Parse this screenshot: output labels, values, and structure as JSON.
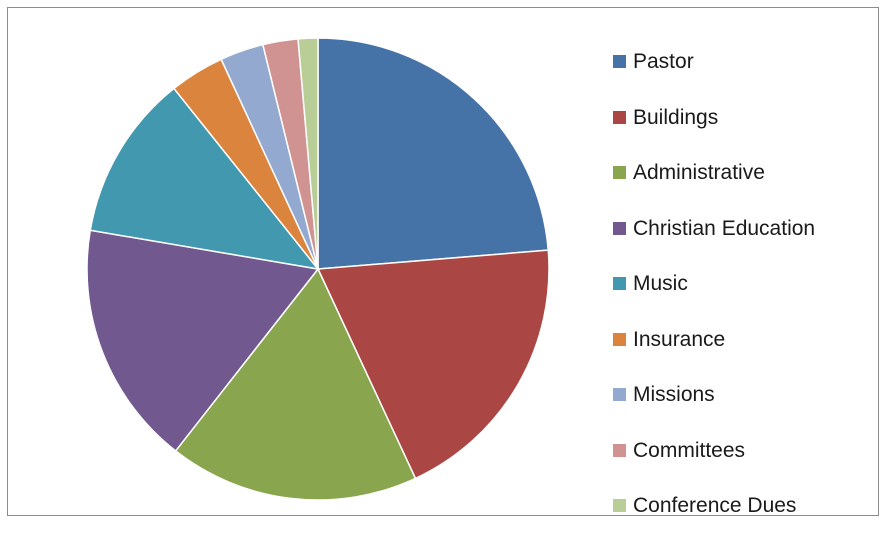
{
  "chart_data": {
    "type": "pie",
    "title": "",
    "start_angle_deg": 0,
    "direction": "clockwise",
    "legend_position": "right",
    "categories": [
      "Pastor",
      "Buildings",
      "Administrative",
      "Christian Education",
      "Music",
      "Insurance",
      "Missions",
      "Committees",
      "Conference Dues"
    ],
    "values": [
      24.1,
      19.7,
      17.8,
      17.4,
      11.8,
      3.9,
      3.1,
      2.5,
      1.4
    ],
    "value_unit": "percent",
    "colors": [
      "#4572A7",
      "#AA4643",
      "#89A54E",
      "#71588F",
      "#4198AF",
      "#DB843D",
      "#93A9CF",
      "#D19392",
      "#B9CD96"
    ]
  }
}
